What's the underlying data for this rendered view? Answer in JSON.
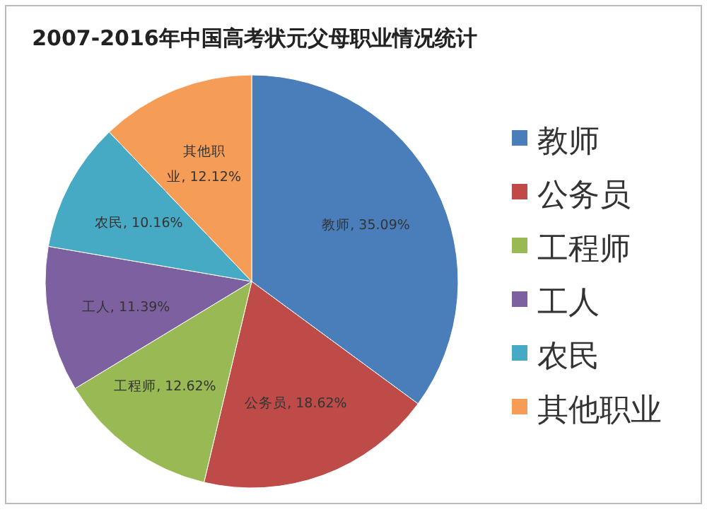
{
  "chart_data": {
    "type": "pie",
    "title": "2007-2016年中国高考状元父母职业情况统计",
    "categories": [
      "教师",
      "公务员",
      "工程师",
      "工人",
      "农民",
      "其他职业"
    ],
    "values": [
      35.09,
      18.62,
      12.62,
      11.39,
      10.16,
      12.12
    ],
    "colors": [
      "#4a7ebb",
      "#be4b48",
      "#98b954",
      "#7d60a0",
      "#46aac5",
      "#f59d56"
    ],
    "value_labels": [
      "教师, 35.09%",
      "公务员, 18.62%",
      "工程师, 12.62%",
      "工人, 11.39%",
      "农民, 10.16%",
      "其他职业, 12.12%"
    ],
    "legend": "right"
  }
}
